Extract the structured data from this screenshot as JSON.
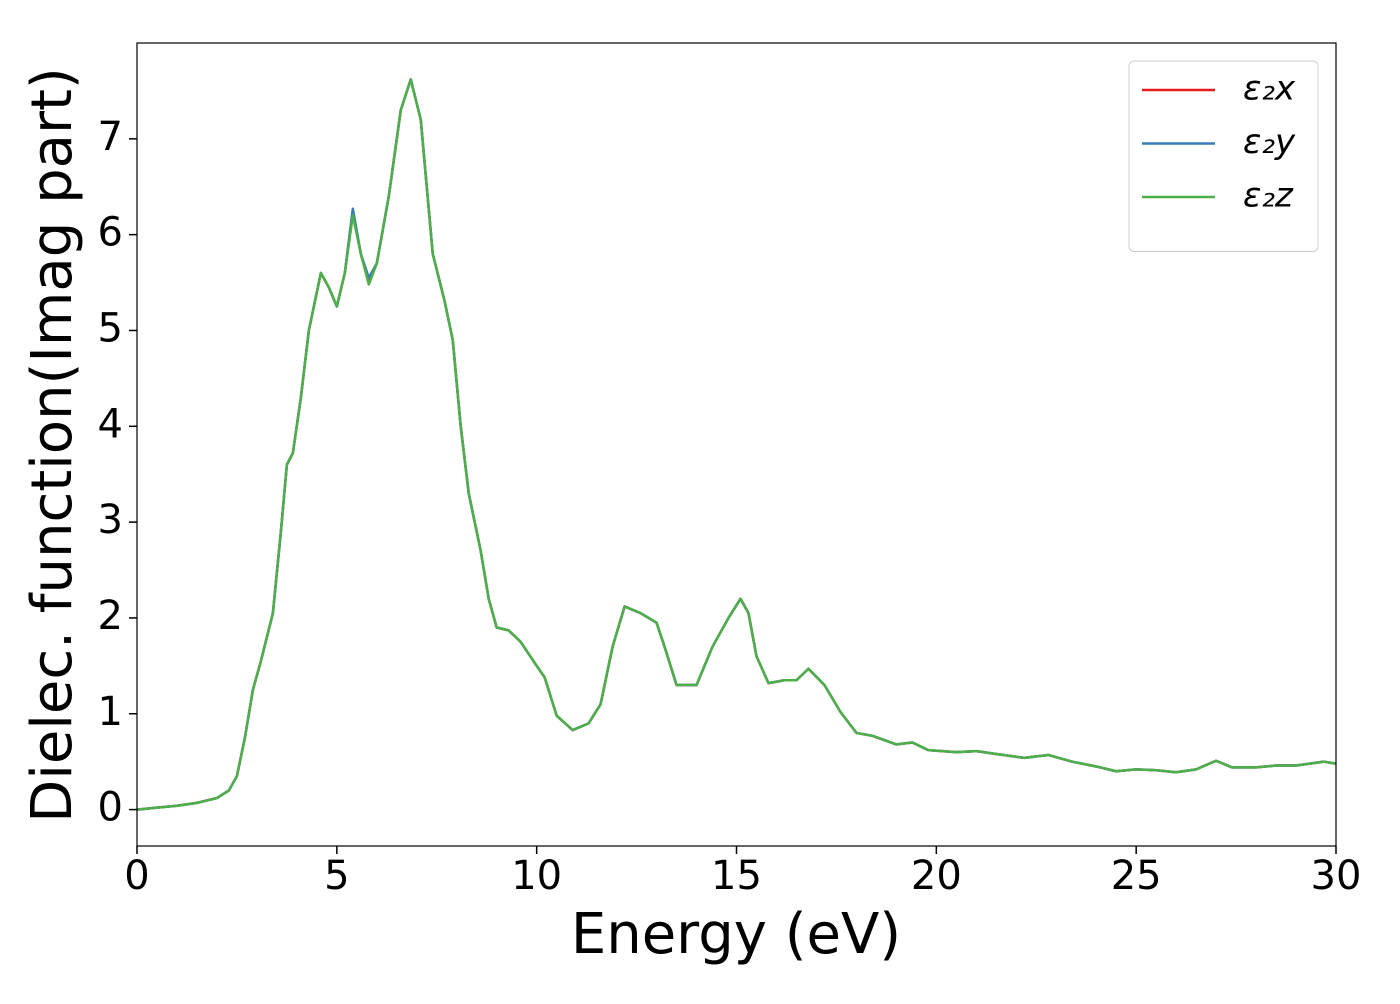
{
  "chart_data": {
    "type": "line",
    "xlabel": "Energy (eV)",
    "ylabel": "Dielec. function(Imag part)",
    "x": [
      0,
      0.5,
      1,
      1.5,
      2,
      2.3,
      2.5,
      2.7,
      2.9,
      3.1,
      3.4,
      3.6,
      3.75,
      3.9,
      4.1,
      4.3,
      4.6,
      4.8,
      5,
      5.2,
      5.4,
      5.6,
      5.8,
      6,
      6.3,
      6.6,
      6.85,
      7.1,
      7.4,
      7.7,
      7.9,
      8.1,
      8.3,
      8.6,
      8.8,
      9,
      9.3,
      9.6,
      10,
      10.2,
      10.5,
      10.9,
      11.3,
      11.6,
      11.9,
      12.2,
      12.6,
      13,
      13.2,
      13.5,
      14,
      14.4,
      14.8,
      15.1,
      15.3,
      15.5,
      15.8,
      16.2,
      16.5,
      16.8,
      17.2,
      17.6,
      18,
      18.4,
      19,
      19.4,
      19.8,
      20.5,
      21,
      21.5,
      22.2,
      22.8,
      23.4,
      24,
      24.5,
      25,
      25.5,
      26,
      26.5,
      27,
      27.4,
      28,
      28.5,
      29,
      29.7,
      30
    ],
    "series": [
      {
        "name": "ε₂x",
        "color": "#e41a1c",
        "values": [
          0,
          0.02,
          0.04,
          0.07,
          0.12,
          0.2,
          0.35,
          0.75,
          1.25,
          1.55,
          2.05,
          2.9,
          3.6,
          3.72,
          4.3,
          5.0,
          5.6,
          5.45,
          5.25,
          5.6,
          6.25,
          5.8,
          5.5,
          5.7,
          6.4,
          7.3,
          7.62,
          7.2,
          5.8,
          5.3,
          4.9,
          4.0,
          3.3,
          2.7,
          2.2,
          1.9,
          1.87,
          1.75,
          1.5,
          1.38,
          0.98,
          0.83,
          0.9,
          1.1,
          1.7,
          2.12,
          2.05,
          1.95,
          1.7,
          1.3,
          1.3,
          1.7,
          2.0,
          2.2,
          2.05,
          1.6,
          1.32,
          1.35,
          1.35,
          1.47,
          1.3,
          1.02,
          0.8,
          0.77,
          0.68,
          0.7,
          0.62,
          0.6,
          0.61,
          0.58,
          0.54,
          0.57,
          0.5,
          0.45,
          0.4,
          0.42,
          0.41,
          0.39,
          0.42,
          0.51,
          0.44,
          0.44,
          0.46,
          0.46,
          0.5,
          0.48
        ]
      },
      {
        "name": "ε₂y",
        "color": "#377eb8",
        "values": [
          0,
          0.02,
          0.04,
          0.07,
          0.12,
          0.2,
          0.35,
          0.75,
          1.25,
          1.55,
          2.05,
          2.9,
          3.6,
          3.72,
          4.3,
          5.0,
          5.6,
          5.45,
          5.25,
          5.6,
          6.27,
          5.8,
          5.55,
          5.7,
          6.4,
          7.3,
          7.62,
          7.2,
          5.8,
          5.3,
          4.9,
          4.0,
          3.3,
          2.7,
          2.2,
          1.9,
          1.87,
          1.75,
          1.5,
          1.38,
          0.98,
          0.83,
          0.9,
          1.1,
          1.7,
          2.12,
          2.05,
          1.95,
          1.7,
          1.3,
          1.3,
          1.7,
          2.0,
          2.2,
          2.05,
          1.6,
          1.32,
          1.35,
          1.35,
          1.47,
          1.3,
          1.02,
          0.8,
          0.77,
          0.68,
          0.7,
          0.62,
          0.6,
          0.61,
          0.58,
          0.54,
          0.57,
          0.5,
          0.45,
          0.4,
          0.42,
          0.41,
          0.39,
          0.42,
          0.51,
          0.44,
          0.44,
          0.46,
          0.46,
          0.5,
          0.48
        ]
      },
      {
        "name": "ε₂z",
        "color": "#4daf4a",
        "values": [
          0,
          0.02,
          0.04,
          0.07,
          0.12,
          0.2,
          0.35,
          0.75,
          1.25,
          1.55,
          2.05,
          2.9,
          3.6,
          3.72,
          4.3,
          5.0,
          5.6,
          5.45,
          5.25,
          5.6,
          6.2,
          5.8,
          5.48,
          5.7,
          6.4,
          7.3,
          7.62,
          7.2,
          5.8,
          5.3,
          4.9,
          4.0,
          3.3,
          2.7,
          2.2,
          1.9,
          1.87,
          1.75,
          1.5,
          1.38,
          0.98,
          0.83,
          0.9,
          1.1,
          1.7,
          2.12,
          2.05,
          1.95,
          1.7,
          1.3,
          1.3,
          1.7,
          2.0,
          2.2,
          2.05,
          1.6,
          1.32,
          1.35,
          1.35,
          1.47,
          1.3,
          1.02,
          0.8,
          0.77,
          0.68,
          0.7,
          0.62,
          0.6,
          0.61,
          0.58,
          0.54,
          0.57,
          0.5,
          0.45,
          0.4,
          0.42,
          0.41,
          0.39,
          0.42,
          0.51,
          0.44,
          0.44,
          0.46,
          0.46,
          0.5,
          0.48
        ]
      }
    ],
    "xlim": [
      0,
      30
    ],
    "xticks": [
      0,
      5,
      10,
      15,
      20,
      25,
      30
    ],
    "ylim": [
      -0.38,
      8.0
    ],
    "yticks": [
      0,
      1,
      2,
      3,
      4,
      5,
      6,
      7
    ],
    "grid": false,
    "legend": "upper right"
  }
}
